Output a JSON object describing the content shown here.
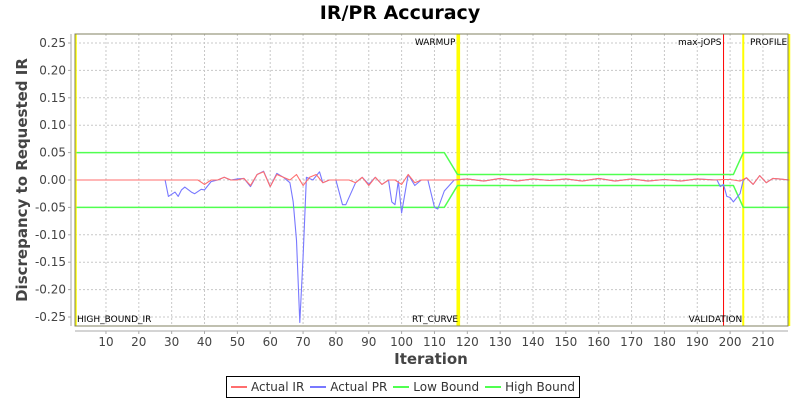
{
  "chart_data": {
    "type": "line",
    "title": "IR/PR Accuracy",
    "xlabel": "Iteration",
    "ylabel": "Discrepancy to Requested IR",
    "xlim": [
      1,
      218
    ],
    "ylim": [
      -0.265,
      0.265
    ],
    "x_ticks": [
      10,
      20,
      30,
      40,
      50,
      60,
      70,
      80,
      90,
      100,
      110,
      120,
      130,
      140,
      150,
      160,
      170,
      180,
      190,
      200,
      210
    ],
    "y_ticks": [
      "0.25",
      "0.20",
      "0.15",
      "0.10",
      "0.05",
      "0.00",
      "-0.05",
      "-0.10",
      "-0.15",
      "-0.20",
      "-0.25"
    ],
    "grid": true,
    "legend_position": "bottom",
    "series": [
      {
        "name": "Actual IR",
        "color": "#ff6e6e",
        "points": [
          [
            1,
            0
          ],
          [
            28,
            0
          ],
          [
            38,
            0
          ],
          [
            40,
            -0.008
          ],
          [
            42,
            0
          ],
          [
            44,
            0
          ],
          [
            46,
            0.005
          ],
          [
            48,
            0
          ],
          [
            50,
            0
          ],
          [
            52,
            0.003
          ],
          [
            54,
            -0.01
          ],
          [
            56,
            0.01
          ],
          [
            58,
            0.015
          ],
          [
            60,
            -0.012
          ],
          [
            62,
            0.01
          ],
          [
            64,
            0.005
          ],
          [
            66,
            0.0
          ],
          [
            68,
            0.01
          ],
          [
            70,
            -0.01
          ],
          [
            72,
            0.005
          ],
          [
            74,
            0.01
          ],
          [
            76,
            -0.005
          ],
          [
            78,
            0.0
          ],
          [
            80,
            0.0
          ],
          [
            84,
            0
          ],
          [
            86,
            -0.005
          ],
          [
            88,
            0.005
          ],
          [
            90,
            -0.01
          ],
          [
            92,
            0.005
          ],
          [
            94,
            -0.008
          ],
          [
            96,
            0.0
          ],
          [
            98,
            0.0
          ],
          [
            100,
            -0.008
          ],
          [
            102,
            0.01
          ],
          [
            104,
            -0.005
          ],
          [
            106,
            0.0
          ],
          [
            108,
            0.0
          ],
          [
            110,
            0
          ],
          [
            116,
            0
          ],
          [
            120,
            0.002
          ],
          [
            125,
            -0.002
          ],
          [
            130,
            0.003
          ],
          [
            135,
            -0.002
          ],
          [
            140,
            0.002
          ],
          [
            145,
            -0.001
          ],
          [
            150,
            0.002
          ],
          [
            155,
            -0.002
          ],
          [
            160,
            0.003
          ],
          [
            165,
            -0.002
          ],
          [
            170,
            0.002
          ],
          [
            175,
            -0.002
          ],
          [
            180,
            0.001
          ],
          [
            185,
            -0.002
          ],
          [
            190,
            0.002
          ],
          [
            195,
            0
          ],
          [
            198,
            0.001
          ],
          [
            200,
            0.001
          ],
          [
            203,
            -0.002
          ],
          [
            205,
            0.004
          ],
          [
            207,
            -0.008
          ],
          [
            209,
            0.008
          ],
          [
            211,
            -0.005
          ],
          [
            213,
            0.003
          ],
          [
            215,
            0.002
          ],
          [
            218,
            0
          ]
        ]
      },
      {
        "name": "Actual PR",
        "color": "#7878ff",
        "points": [
          [
            1,
            0
          ],
          [
            28,
            0
          ],
          [
            29,
            -0.03
          ],
          [
            31,
            -0.022
          ],
          [
            32,
            -0.03
          ],
          [
            33,
            -0.018
          ],
          [
            34,
            -0.013
          ],
          [
            36,
            -0.022
          ],
          [
            37,
            -0.025
          ],
          [
            39,
            -0.017
          ],
          [
            40,
            -0.018
          ],
          [
            42,
            -0.003
          ],
          [
            44,
            0
          ],
          [
            46,
            0.005
          ],
          [
            48,
            0
          ],
          [
            50,
            0.002
          ],
          [
            52,
            0.003
          ],
          [
            54,
            -0.012
          ],
          [
            56,
            0.01
          ],
          [
            58,
            0.016
          ],
          [
            60,
            -0.012
          ],
          [
            62,
            0.012
          ],
          [
            64,
            0.005
          ],
          [
            66,
            -0.005
          ],
          [
            67,
            -0.04
          ],
          [
            68,
            -0.11
          ],
          [
            69,
            -0.26
          ],
          [
            70,
            -0.14
          ],
          [
            71,
            0.005
          ],
          [
            73,
            0.0
          ],
          [
            75,
            0.015
          ],
          [
            76,
            -0.005
          ],
          [
            78,
            0.0
          ],
          [
            80,
            0.0
          ],
          [
            82,
            -0.045
          ],
          [
            83,
            -0.045
          ],
          [
            86,
            -0.005
          ],
          [
            88,
            0.005
          ],
          [
            90,
            -0.008
          ],
          [
            92,
            0.005
          ],
          [
            94,
            -0.008
          ],
          [
            96,
            0.0
          ],
          [
            97,
            -0.04
          ],
          [
            98,
            -0.045
          ],
          [
            99,
            -0.002
          ],
          [
            100,
            -0.06
          ],
          [
            102,
            0.01
          ],
          [
            104,
            -0.01
          ],
          [
            106,
            0.0
          ],
          [
            108,
            0.0
          ],
          [
            110,
            -0.05
          ],
          [
            111,
            -0.053
          ],
          [
            113,
            -0.02
          ],
          [
            116,
            0
          ],
          [
            120,
            0.002
          ],
          [
            125,
            -0.002
          ],
          [
            130,
            0.003
          ],
          [
            135,
            -0.002
          ],
          [
            140,
            0.002
          ],
          [
            145,
            -0.001
          ],
          [
            150,
            0.002
          ],
          [
            155,
            -0.002
          ],
          [
            160,
            0.003
          ],
          [
            165,
            -0.002
          ],
          [
            170,
            0.002
          ],
          [
            175,
            -0.002
          ],
          [
            180,
            0.001
          ],
          [
            185,
            -0.002
          ],
          [
            190,
            0.002
          ],
          [
            196,
            0
          ],
          [
            197,
            -0.012
          ],
          [
            198,
            -0.008
          ],
          [
            199,
            -0.03
          ],
          [
            200,
            -0.032
          ],
          [
            201,
            -0.04
          ],
          [
            203,
            -0.025
          ],
          [
            204,
            0.0
          ],
          [
            205,
            0.004
          ],
          [
            207,
            -0.008
          ],
          [
            209,
            0.008
          ],
          [
            211,
            -0.005
          ],
          [
            213,
            0.003
          ],
          [
            215,
            0.002
          ],
          [
            218,
            0
          ]
        ]
      },
      {
        "name": "Low Bound",
        "color": "#50ff50",
        "points": [
          [
            1,
            -0.05
          ],
          [
            113,
            -0.05
          ],
          [
            117,
            -0.01
          ],
          [
            201,
            -0.01
          ],
          [
            204,
            -0.05
          ],
          [
            218,
            -0.05
          ]
        ]
      },
      {
        "name": "High Bound",
        "color": "#50ff50",
        "points": [
          [
            1,
            0.05
          ],
          [
            113,
            0.05
          ],
          [
            117,
            0.01
          ],
          [
            201,
            0.01
          ],
          [
            204,
            0.05
          ],
          [
            218,
            0.05
          ]
        ]
      }
    ],
    "markers": [
      {
        "label": "HIGH_BOUND_IR",
        "x": 1,
        "color": "#ffff00",
        "position": "bottom-left"
      },
      {
        "label": "WARMUP",
        "x": 117,
        "color": "#ffff00",
        "position": "top"
      },
      {
        "label": "RT_CURVE",
        "x": 117.5,
        "color": "#ffff00",
        "position": "bottom"
      },
      {
        "label": "max-jOPS",
        "x": 198,
        "color": "#ff0000",
        "position": "top"
      },
      {
        "label": "VALIDATION",
        "x": 204,
        "color": "#ffff00",
        "position": "bottom"
      },
      {
        "label": "PROFILE",
        "x": 218,
        "color": "#ffff00",
        "position": "top"
      }
    ]
  },
  "legend": {
    "items": [
      {
        "label": "Actual IR",
        "color": "#ff6e6e"
      },
      {
        "label": "Actual PR",
        "color": "#7878ff"
      },
      {
        "label": "Low Bound",
        "color": "#50ff50"
      },
      {
        "label": "High Bound",
        "color": "#50ff50"
      }
    ]
  }
}
